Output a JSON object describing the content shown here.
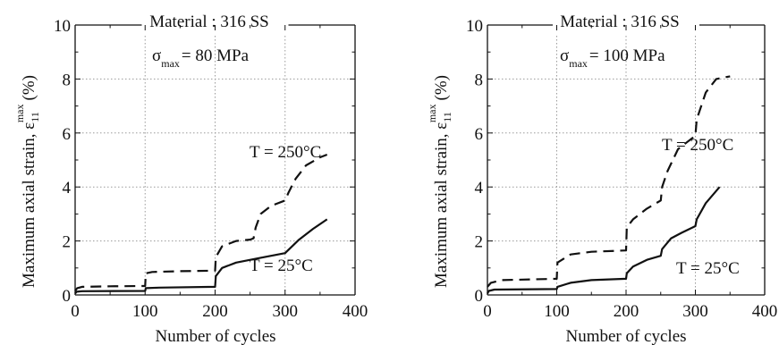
{
  "chart_data": [
    {
      "type": "line",
      "material_label": "Material : 316 SS",
      "sigma_symbol": "σ",
      "sigma_sub": "max",
      "sigma_value": "= 80 MPa",
      "xlabel": "Number of cycles",
      "ylabel_main": "Maximum axial strain, ε",
      "ylabel_sub": "11",
      "ylabel_sup": "max",
      "ylabel_unit": "(%)",
      "xlim": [
        0,
        400
      ],
      "ylim": [
        0,
        10
      ],
      "xticks": [
        "0",
        "100",
        "200",
        "300",
        "400"
      ],
      "yticks": [
        "0",
        "2",
        "4",
        "6",
        "8",
        "10"
      ],
      "grid": true,
      "series": [
        {
          "name": "T = 250°C",
          "style": "dashed",
          "points": [
            [
              0,
              0.15
            ],
            [
              3,
              0.25
            ],
            [
              10,
              0.3
            ],
            [
              50,
              0.32
            ],
            [
              100,
              0.33
            ],
            [
              101,
              0.8
            ],
            [
              110,
              0.85
            ],
            [
              150,
              0.88
            ],
            [
              200,
              0.9
            ],
            [
              201,
              1.4
            ],
            [
              210,
              1.8
            ],
            [
              230,
              2.0
            ],
            [
              250,
              2.05
            ],
            [
              255,
              2.1
            ],
            [
              258,
              2.5
            ],
            [
              265,
              3.0
            ],
            [
              280,
              3.3
            ],
            [
              300,
              3.5
            ],
            [
              305,
              3.8
            ],
            [
              315,
              4.3
            ],
            [
              330,
              4.8
            ],
            [
              350,
              5.1
            ],
            [
              360,
              5.2
            ]
          ]
        },
        {
          "name": "T = 25°C",
          "style": "solid",
          "points": [
            [
              0,
              0.05
            ],
            [
              2,
              0.12
            ],
            [
              10,
              0.14
            ],
            [
              100,
              0.15
            ],
            [
              101,
              0.25
            ],
            [
              120,
              0.27
            ],
            [
              200,
              0.3
            ],
            [
              201,
              0.7
            ],
            [
              210,
              1.0
            ],
            [
              230,
              1.2
            ],
            [
              260,
              1.35
            ],
            [
              300,
              1.55
            ],
            [
              302,
              1.6
            ],
            [
              320,
              2.05
            ],
            [
              340,
              2.45
            ],
            [
              360,
              2.8
            ]
          ]
        }
      ]
    },
    {
      "type": "line",
      "material_label": "Material : 316 SS",
      "sigma_symbol": "σ",
      "sigma_sub": "max",
      "sigma_value": "= 100 MPa",
      "xlabel": "Number of cycles",
      "ylabel_main": "Maximum axial strain, ε",
      "ylabel_sub": "11",
      "ylabel_sup": "max",
      "ylabel_unit": "(%)",
      "xlim": [
        0,
        400
      ],
      "ylim": [
        0,
        10
      ],
      "xticks": [
        "0",
        "100",
        "200",
        "300",
        "400"
      ],
      "yticks": [
        "0",
        "2",
        "4",
        "6",
        "8",
        "10"
      ],
      "grid": true,
      "series": [
        {
          "name": "T = 250°C",
          "style": "dashed",
          "points": [
            [
              0,
              0.3
            ],
            [
              5,
              0.45
            ],
            [
              20,
              0.55
            ],
            [
              100,
              0.6
            ],
            [
              101,
              1.2
            ],
            [
              120,
              1.5
            ],
            [
              150,
              1.6
            ],
            [
              200,
              1.65
            ],
            [
              201,
              2.5
            ],
            [
              210,
              2.8
            ],
            [
              230,
              3.2
            ],
            [
              250,
              3.5
            ],
            [
              252,
              4.0
            ],
            [
              260,
              4.6
            ],
            [
              275,
              5.4
            ],
            [
              300,
              5.9
            ],
            [
              302,
              6.5
            ],
            [
              315,
              7.5
            ],
            [
              330,
              8.0
            ],
            [
              350,
              8.1
            ]
          ]
        },
        {
          "name": "T = 25°C",
          "style": "solid",
          "points": [
            [
              0,
              0.05
            ],
            [
              2,
              0.15
            ],
            [
              10,
              0.2
            ],
            [
              100,
              0.22
            ],
            [
              101,
              0.3
            ],
            [
              120,
              0.45
            ],
            [
              150,
              0.55
            ],
            [
              200,
              0.6
            ],
            [
              201,
              0.8
            ],
            [
              210,
              1.05
            ],
            [
              230,
              1.3
            ],
            [
              250,
              1.45
            ],
            [
              252,
              1.7
            ],
            [
              265,
              2.1
            ],
            [
              280,
              2.3
            ],
            [
              300,
              2.55
            ],
            [
              302,
              2.8
            ],
            [
              315,
              3.4
            ],
            [
              335,
              4.0
            ]
          ]
        }
      ]
    }
  ]
}
